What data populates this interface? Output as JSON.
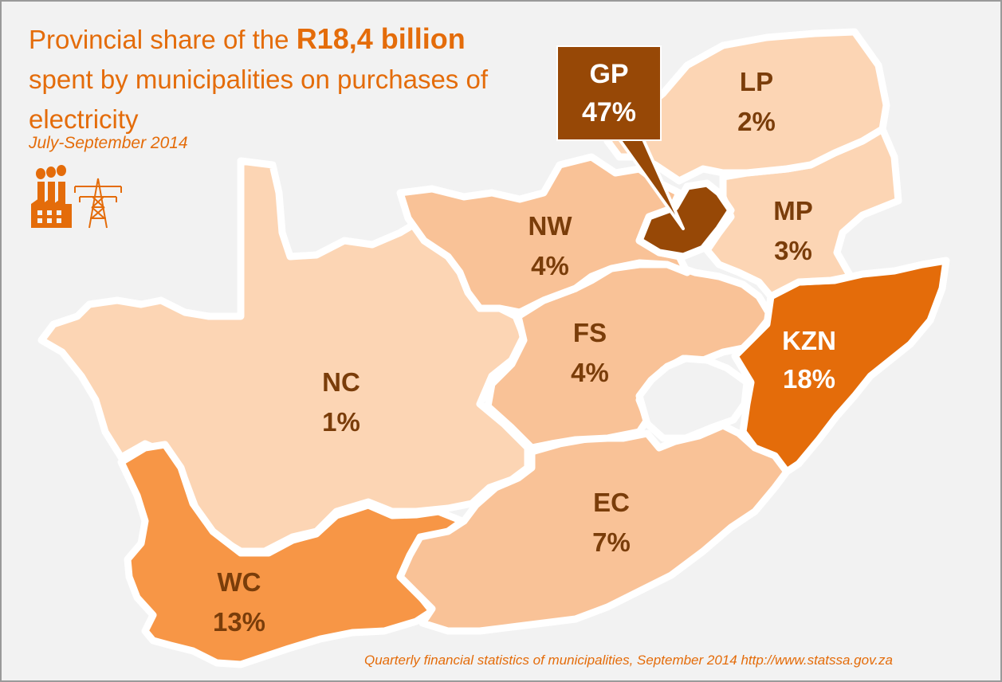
{
  "title": {
    "part1": "Provincial share of the",
    "highlight": "R18,4 billion",
    "part2": "spent by municipalities on purchases of electricity"
  },
  "subtitle": "July-September 2014",
  "source": "Quarterly financial statistics of municipalities, September 2014 http://www.statssa.gov.za",
  "icons": [
    "factory-icon",
    "power-pylon-icon"
  ],
  "colors": {
    "background": "#f2f2f2",
    "accent": "#e46c0a",
    "label": "#7a3d0a",
    "scale": {
      "lowest": "#fcd5b4",
      "low": "#f9c297",
      "mid": "#f79646",
      "high": "#e46c0a",
      "highest": "#974806"
    }
  },
  "provinces": [
    {
      "code": "GP",
      "value": "47%",
      "share": 47,
      "color": "#974806",
      "callout": true
    },
    {
      "code": "KZN",
      "value": "18%",
      "share": 18,
      "color": "#e46c0a"
    },
    {
      "code": "WC",
      "value": "13%",
      "share": 13,
      "color": "#f79646"
    },
    {
      "code": "EC",
      "value": "7%",
      "share": 7,
      "color": "#f9c297"
    },
    {
      "code": "NW",
      "value": "4%",
      "share": 4,
      "color": "#f9c297"
    },
    {
      "code": "FS",
      "value": "4%",
      "share": 4,
      "color": "#f9c297"
    },
    {
      "code": "MP",
      "value": "3%",
      "share": 3,
      "color": "#fcd5b4"
    },
    {
      "code": "LP",
      "value": "2%",
      "share": 2,
      "color": "#fcd5b4"
    },
    {
      "code": "NC",
      "value": "1%",
      "share": 1,
      "color": "#fcd5b4"
    }
  ]
}
